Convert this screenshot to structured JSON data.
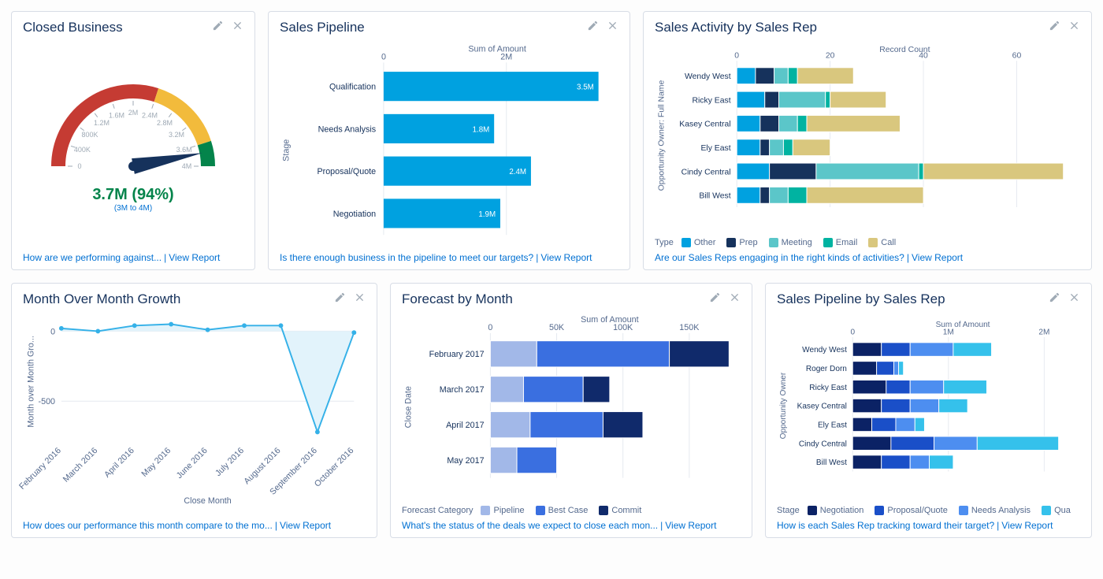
{
  "cards": {
    "closed": {
      "title": "Closed Business",
      "value_label": "3.7M (94%)",
      "range_label": "(3M to 4M)",
      "ticks": [
        "0",
        "400K",
        "800K",
        "1.2M",
        "1.6M",
        "2M",
        "2.4M",
        "2.8M",
        "3.2M",
        "3.6M",
        "4M"
      ],
      "arcs": [
        {
          "from": -180,
          "to": -72,
          "color": "#c53b33"
        },
        {
          "from": -72,
          "to": -18,
          "color": "#f2bb3c"
        },
        {
          "from": -18,
          "to": 0,
          "color": "#04844b"
        }
      ],
      "needle_angle": -10.8,
      "footer_q": "How are we performing against...",
      "footer_link": "View Report"
    },
    "pipeline": {
      "title": "Sales Pipeline",
      "axis_title": "Sum of Amount",
      "y_title": "Stage",
      "xticks": [
        {
          "v": 0,
          "l": "0"
        },
        {
          "v": 2,
          "l": "2M"
        }
      ],
      "xmax": 3.7,
      "bars": [
        {
          "label": "Qualification",
          "v": 3.5,
          "vl": "3.5M"
        },
        {
          "label": "Needs Analysis",
          "v": 1.8,
          "vl": "1.8M"
        },
        {
          "label": "Proposal/Quote",
          "v": 2.4,
          "vl": "2.4M"
        },
        {
          "label": "Negotiation",
          "v": 1.9,
          "vl": "1.9M"
        }
      ],
      "bar_color": "#00a1e0",
      "footer_q": "Is there enough business in the pipeline to meet our targets?",
      "footer_link": "View Report"
    },
    "activity": {
      "title": "Sales Activity by Sales Rep",
      "axis_title": "Record Count",
      "y_title": "Opportunity Owner: Full Name",
      "xticks": [
        {
          "v": 0,
          "l": "0"
        },
        {
          "v": 20,
          "l": "20"
        },
        {
          "v": 40,
          "l": "40"
        },
        {
          "v": 60,
          "l": "60"
        }
      ],
      "xmax": 72,
      "legend_title": "Type",
      "legend": [
        {
          "l": "Other",
          "c": "#00a1e0"
        },
        {
          "l": "Prep",
          "c": "#16325c"
        },
        {
          "l": "Meeting",
          "c": "#5bc6c9"
        },
        {
          "l": "Email",
          "c": "#00b3a1"
        },
        {
          "l": "Call",
          "c": "#d9c77e"
        }
      ],
      "rows": [
        {
          "label": "Wendy West",
          "seg": [
            4,
            4,
            3,
            2,
            12
          ]
        },
        {
          "label": "Ricky East",
          "seg": [
            6,
            3,
            10,
            1,
            12
          ]
        },
        {
          "label": "Kasey Central",
          "seg": [
            5,
            4,
            4,
            2,
            20
          ]
        },
        {
          "label": "Ely East",
          "seg": [
            5,
            2,
            3,
            2,
            8
          ]
        },
        {
          "label": "Cindy Central",
          "seg": [
            7,
            10,
            22,
            1,
            30
          ]
        },
        {
          "label": "Bill West",
          "seg": [
            5,
            2,
            4,
            4,
            25
          ]
        }
      ],
      "footer_q": "Are our Sales Reps engaging in the right kinds of activities?",
      "footer_link": "View Report"
    },
    "mom": {
      "title": "Month Over Month Growth",
      "y_title": "Month over Month Gro...",
      "x_title": "Close Month",
      "yticks": [
        {
          "v": 0,
          "l": "0"
        },
        {
          "v": -500,
          "l": "-500"
        }
      ],
      "ymin": -800,
      "ymax": 80,
      "categories": [
        "February 2016",
        "March 2016",
        "April 2016",
        "May 2016",
        "June 2016",
        "July 2016",
        "August 2016",
        "September 2016",
        "October 2016"
      ],
      "values": [
        20,
        0,
        40,
        50,
        10,
        40,
        40,
        -720,
        -10
      ],
      "line_color": "#35b1e8",
      "fill_color": "#e2f3fb",
      "footer_q": "How does our performance this month compare to the mo...",
      "footer_link": "View Report"
    },
    "forecast": {
      "title": "Forecast by Month",
      "axis_title": "Sum of Amount",
      "y_title": "Close Date",
      "xticks": [
        {
          "v": 0,
          "l": "0"
        },
        {
          "v": 50,
          "l": "50K"
        },
        {
          "v": 100,
          "l": "100K"
        },
        {
          "v": 150,
          "l": "150K"
        }
      ],
      "xmax": 180,
      "legend_title": "Forecast Category",
      "legend": [
        {
          "l": "Pipeline",
          "c": "#a2b8e8"
        },
        {
          "l": "Best Case",
          "c": "#3a6fe0"
        },
        {
          "l": "Commit",
          "c": "#102a6b"
        }
      ],
      "rows": [
        {
          "label": "February 2017",
          "seg": [
            35,
            100,
            45
          ]
        },
        {
          "label": "March 2017",
          "seg": [
            25,
            45,
            20
          ]
        },
        {
          "label": "April 2017",
          "seg": [
            30,
            55,
            30
          ]
        },
        {
          "label": "May 2017",
          "seg": [
            20,
            30,
            0
          ]
        }
      ],
      "footer_q": "What's the status of the deals we expect to close each mon...",
      "footer_link": "View Report"
    },
    "pipe_rep": {
      "title": "Sales Pipeline by Sales Rep",
      "axis_title": "Sum of Amount",
      "y_title": "Opportunity Owner",
      "xticks": [
        {
          "v": 0,
          "l": "0"
        },
        {
          "v": 1,
          "l": "1M"
        },
        {
          "v": 2,
          "l": "2M"
        }
      ],
      "xmax": 2.3,
      "legend_title": "Stage",
      "legend": [
        {
          "l": "Negotiation",
          "c": "#0b2265"
        },
        {
          "l": "Proposal/Quote",
          "c": "#1a4fc8"
        },
        {
          "l": "Needs Analysis",
          "c": "#4d8ef0"
        },
        {
          "l": "Qua",
          "c": "#35c1eb"
        }
      ],
      "rows": [
        {
          "label": "Wendy West",
          "seg": [
            0.3,
            0.3,
            0.45,
            0.4
          ]
        },
        {
          "label": "Roger Dorn",
          "seg": [
            0.25,
            0.18,
            0.05,
            0.05
          ]
        },
        {
          "label": "Ricky East",
          "seg": [
            0.35,
            0.25,
            0.35,
            0.45
          ]
        },
        {
          "label": "Kasey Central",
          "seg": [
            0.3,
            0.3,
            0.3,
            0.3
          ]
        },
        {
          "label": "Ely East",
          "seg": [
            0.2,
            0.25,
            0.2,
            0.1
          ]
        },
        {
          "label": "Cindy Central",
          "seg": [
            0.4,
            0.45,
            0.45,
            0.85
          ]
        },
        {
          "label": "Bill West",
          "seg": [
            0.3,
            0.3,
            0.2,
            0.25
          ]
        }
      ],
      "footer_q": "How is each Sales Rep tracking toward their target?",
      "footer_link": "View Report"
    }
  }
}
